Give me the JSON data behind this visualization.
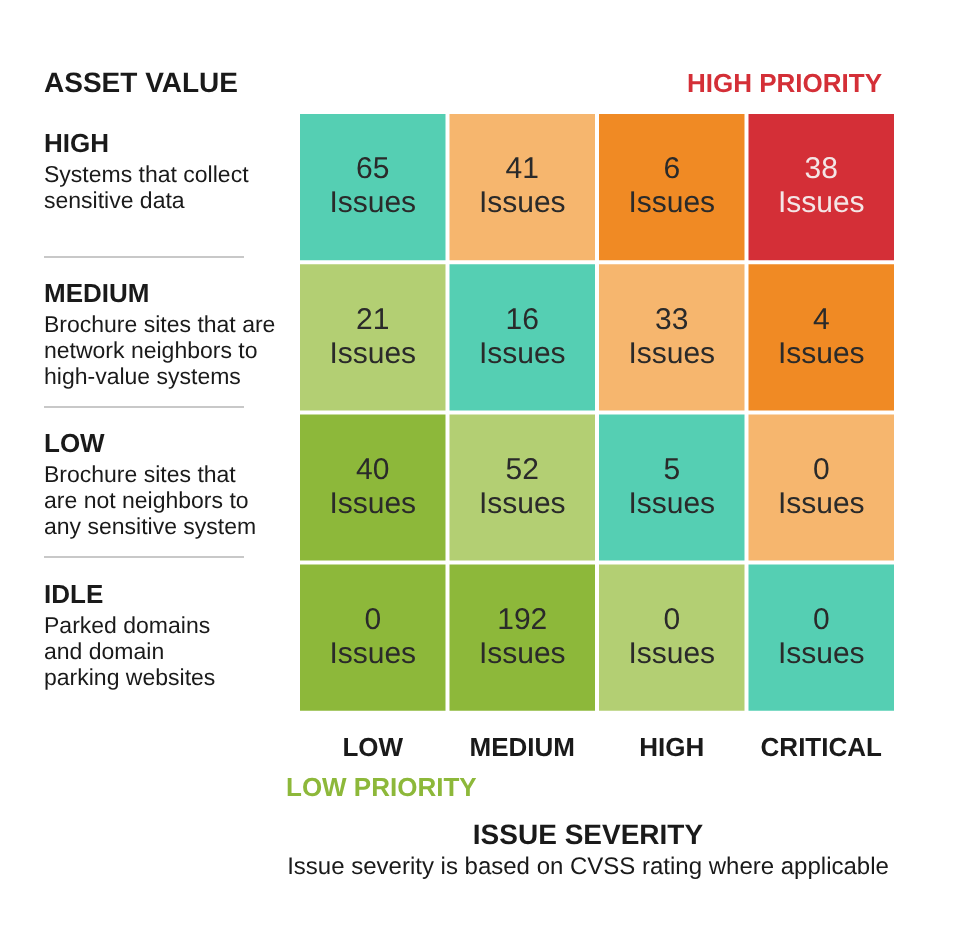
{
  "chart_data": {
    "type": "heatmap",
    "ylabel": "ASSET VALUE",
    "xlabel": "ISSUE SEVERITY",
    "categories": [
      "LOW",
      "MEDIUM",
      "HIGH",
      "CRITICAL"
    ],
    "y_categories": [
      "HIGH\nSystems that collect\nsensitive data",
      "MEDIUM\nBrochure sites that are\nnetwork neighbors to\nhigh-value systems",
      "LOW\nBrochure sites that\nare not neighbors to\nany sensitive system",
      "IDLE\nParked domains\nand domain\nparking websites"
    ],
    "cells": [
      [
        65,
        41,
        6,
        38
      ],
      [
        21,
        16,
        33,
        4
      ],
      [
        40,
        52,
        5,
        0
      ],
      [
        0,
        192,
        0,
        0
      ]
    ],
    "cell_labels": [
      [
        "65\nIssues",
        "41\nIssues",
        "6\nIssues",
        "38\nIssues"
      ],
      [
        "21\nIssues",
        "16\nIssues",
        "33\nIssues",
        "4\nIssues"
      ],
      [
        "40\nIssues",
        "52\nIssues",
        "5\nIssues",
        "0\nIssues"
      ],
      [
        "0\nIssues",
        "192\nIssues",
        "0\nIssues",
        "0\nIssues"
      ]
    ],
    "colors": [
      [
        "#55cfb3",
        "#f6b66e",
        "#f08a24",
        "#d42f37"
      ],
      [
        "#b3cf73",
        "#55cfb3",
        "#f6b66e",
        "#f08a24"
      ],
      [
        "#8db83a",
        "#b3cf73",
        "#55cfb3",
        "#f6b66e"
      ],
      [
        "#8db83a",
        "#8db83a",
        "#b3cf73",
        "#55cfb3"
      ]
    ],
    "annotations": [
      "HIGH PRIORITY",
      "LOW PRIORITY",
      "Issue severity is based on CVSS rating where applicable"
    ]
  }
}
